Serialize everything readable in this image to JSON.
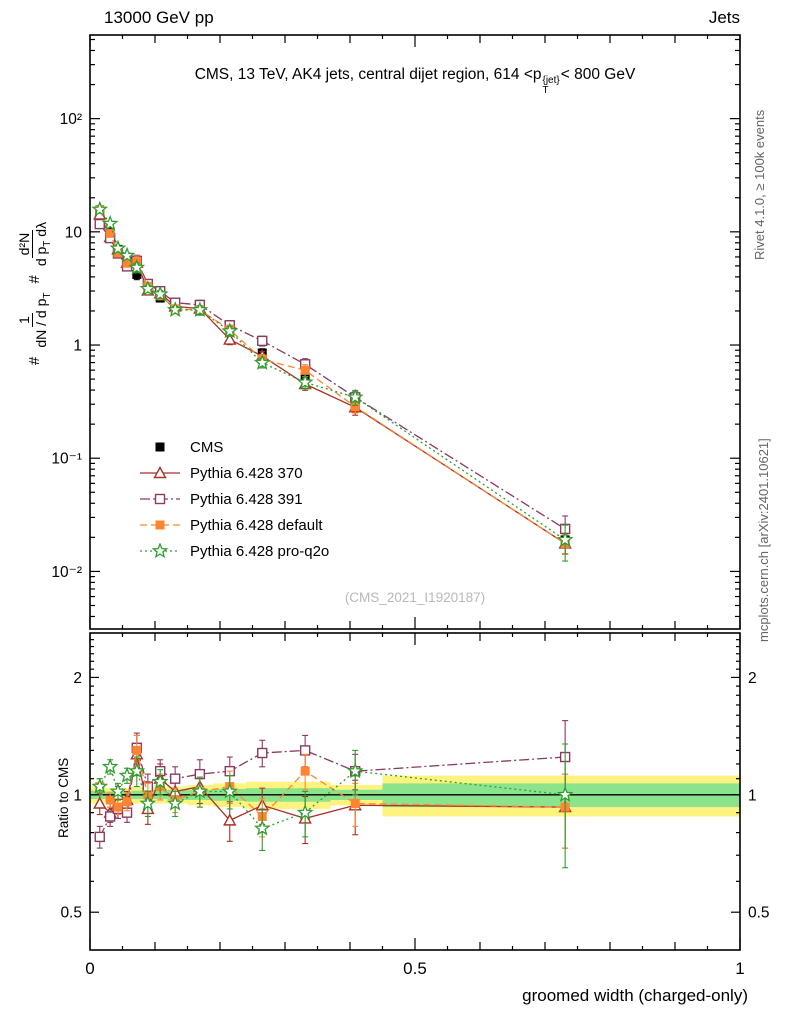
{
  "header": {
    "left": "13000 GeV pp",
    "right": "Jets"
  },
  "title": {
    "pre": "CMS, 13 TeV, AK4 jets, central dijet region, 614 <p",
    "sup": "{jet}",
    "sub": "T",
    "post": "< 800 GeV"
  },
  "side_texts": {
    "top_right": "Rivet 4.1.0, ≥ 100k events",
    "bottom_right": "mcplots.cern.ch [arXiv:2401.10621]"
  },
  "watermark": "(CMS_2021_I1920187)",
  "labels": {
    "xlabel": "groomed width (charged-only)",
    "ratio_ylabel": "Ratio to CMS",
    "ylabel": {
      "hash1": "#",
      "frac1_num": "1",
      "frac1_den": "dN / d p",
      "frac1_den_sub": "T",
      "hash2": "#",
      "frac2_num": "d²N",
      "frac2_den": "d p",
      "frac2_den_sub": "T",
      "frac2_den_tail": " dλ"
    }
  },
  "chart_data": {
    "type": "line",
    "title": "CMS, 13 TeV, AK4 jets, central dijet region, 614 < pT{jet} < 800 GeV",
    "xlabel": "groomed width (charged-only)",
    "ylabel": "(1/(dN/dpT)) d²N/(dpT dλ)",
    "ratio_ylabel": "Ratio to CMS",
    "legend_position": "middle-left",
    "grid": false,
    "xlim": [
      0,
      1
    ],
    "x": [
      0.015,
      0.031,
      0.043,
      0.057,
      0.072,
      0.089,
      0.108,
      0.131,
      0.169,
      0.215,
      0.265,
      0.331,
      0.408,
      0.731
    ],
    "xticks": [
      {
        "v": 0,
        "label": "0"
      },
      {
        "v": 0.5,
        "label": "0.5"
      },
      {
        "v": 1,
        "label": "1"
      }
    ],
    "main": {
      "ylog": true,
      "ylim": [
        0.0031,
        548
      ],
      "yticks": [
        {
          "v": 100,
          "label": "10²"
        },
        {
          "v": 10,
          "label": "10"
        },
        {
          "v": 1,
          "label": "1"
        },
        {
          "v": 0.1,
          "label": "10⁻¹"
        },
        {
          "v": 0.01,
          "label": "10⁻²"
        }
      ],
      "yerr_rel": [
        0.1,
        0.06,
        0.05,
        0.05,
        0.1,
        0.07,
        0.07,
        0.07,
        0.08,
        0.08,
        0.09,
        0.1,
        0.12,
        0.25
      ]
    },
    "series": [
      {
        "name": "CMS",
        "marker": "square-filled",
        "color": "#000000",
        "line": "none",
        "values": [
          15,
          10,
          7,
          5.5,
          4.2,
          3.3,
          2.6,
          2.15,
          2.0,
          1.3,
          0.85,
          0.52,
          0.3,
          0.019
        ]
      },
      {
        "name": "Pythia 6.428 370",
        "marker": "triangle-open",
        "color": "#a93226",
        "line": "solid",
        "ratio_to_cms": [
          0.95,
          0.9,
          1.0,
          0.97,
          1.27,
          0.92,
          1.1,
          1.02,
          1.05,
          0.86,
          0.94,
          0.87,
          0.94,
          0.93
        ],
        "ratio_err": [
          0.06,
          0.05,
          0.05,
          0.05,
          0.15,
          0.08,
          0.1,
          0.08,
          0.1,
          0.1,
          0.1,
          0.12,
          0.15,
          0.2
        ]
      },
      {
        "name": "Pythia 6.428 391",
        "marker": "square-open",
        "color": "#8b3a62",
        "line": "dashdot",
        "ratio_to_cms": [
          0.78,
          0.88,
          0.92,
          0.9,
          1.32,
          1.05,
          1.15,
          1.1,
          1.13,
          1.15,
          1.28,
          1.3,
          1.15,
          1.25
        ],
        "ratio_err": [
          0.05,
          0.05,
          0.05,
          0.05,
          0.12,
          0.08,
          0.08,
          0.08,
          0.1,
          0.1,
          0.1,
          0.12,
          0.12,
          0.3
        ]
      },
      {
        "name": "Pythia 6.428 default",
        "marker": "square-filled",
        "color": "#ff8532",
        "line": "dash",
        "ratio_to_cms": [
          1.05,
          0.97,
          0.93,
          0.96,
          1.3,
          1.0,
          1.05,
          0.97,
          1.02,
          1.05,
          0.88,
          1.15,
          0.95,
          0.93
        ],
        "ratio_err": [
          0.05,
          0.04,
          0.04,
          0.05,
          0.12,
          0.07,
          0.08,
          0.07,
          0.09,
          0.1,
          0.1,
          0.12,
          0.12,
          0.2
        ]
      },
      {
        "name": "Pythia 6.428 pro-q2o",
        "marker": "star-open",
        "color": "#2f9e2f",
        "line": "dot",
        "ratio_to_cms": [
          1.05,
          1.18,
          1.02,
          1.12,
          1.15,
          0.95,
          1.08,
          0.95,
          1.02,
          1.02,
          0.82,
          0.9,
          1.15,
          1.0
        ],
        "ratio_err": [
          0.05,
          0.05,
          0.05,
          0.05,
          0.1,
          0.07,
          0.08,
          0.07,
          0.09,
          0.1,
          0.1,
          0.12,
          0.15,
          0.35
        ]
      }
    ],
    "ratio": {
      "ylog": true,
      "ylim": [
        0.4,
        2.6
      ],
      "yticks": [
        {
          "v": 2,
          "label": "2"
        },
        {
          "v": 1,
          "label": "1"
        },
        {
          "v": 0.5,
          "label": "0.5"
        }
      ],
      "band_colors": {
        "yellow": "#fff380",
        "green": "#8be48b"
      },
      "bands": [
        {
          "x0": 0.0,
          "x1": 0.023,
          "yellow": 0.05,
          "green": 0.025
        },
        {
          "x0": 0.023,
          "x1": 0.037,
          "yellow": 0.04,
          "green": 0.02
        },
        {
          "x0": 0.037,
          "x1": 0.05,
          "yellow": 0.04,
          "green": 0.02
        },
        {
          "x0": 0.05,
          "x1": 0.065,
          "yellow": 0.04,
          "green": 0.02
        },
        {
          "x0": 0.065,
          "x1": 0.08,
          "yellow": 0.05,
          "green": 0.025
        },
        {
          "x0": 0.08,
          "x1": 0.098,
          "yellow": 0.05,
          "green": 0.025
        },
        {
          "x0": 0.098,
          "x1": 0.119,
          "yellow": 0.05,
          "green": 0.025
        },
        {
          "x0": 0.119,
          "x1": 0.15,
          "yellow": 0.05,
          "green": 0.03
        },
        {
          "x0": 0.15,
          "x1": 0.19,
          "yellow": 0.06,
          "green": 0.03
        },
        {
          "x0": 0.19,
          "x1": 0.24,
          "yellow": 0.07,
          "green": 0.035
        },
        {
          "x0": 0.24,
          "x1": 0.3,
          "yellow": 0.08,
          "green": 0.04
        },
        {
          "x0": 0.3,
          "x1": 0.37,
          "yellow": 0.08,
          "green": 0.04
        },
        {
          "x0": 0.37,
          "x1": 0.45,
          "yellow": 0.06,
          "green": 0.03
        },
        {
          "x0": 0.45,
          "x1": 1.0,
          "yellow": 0.12,
          "green": 0.07
        }
      ]
    }
  }
}
